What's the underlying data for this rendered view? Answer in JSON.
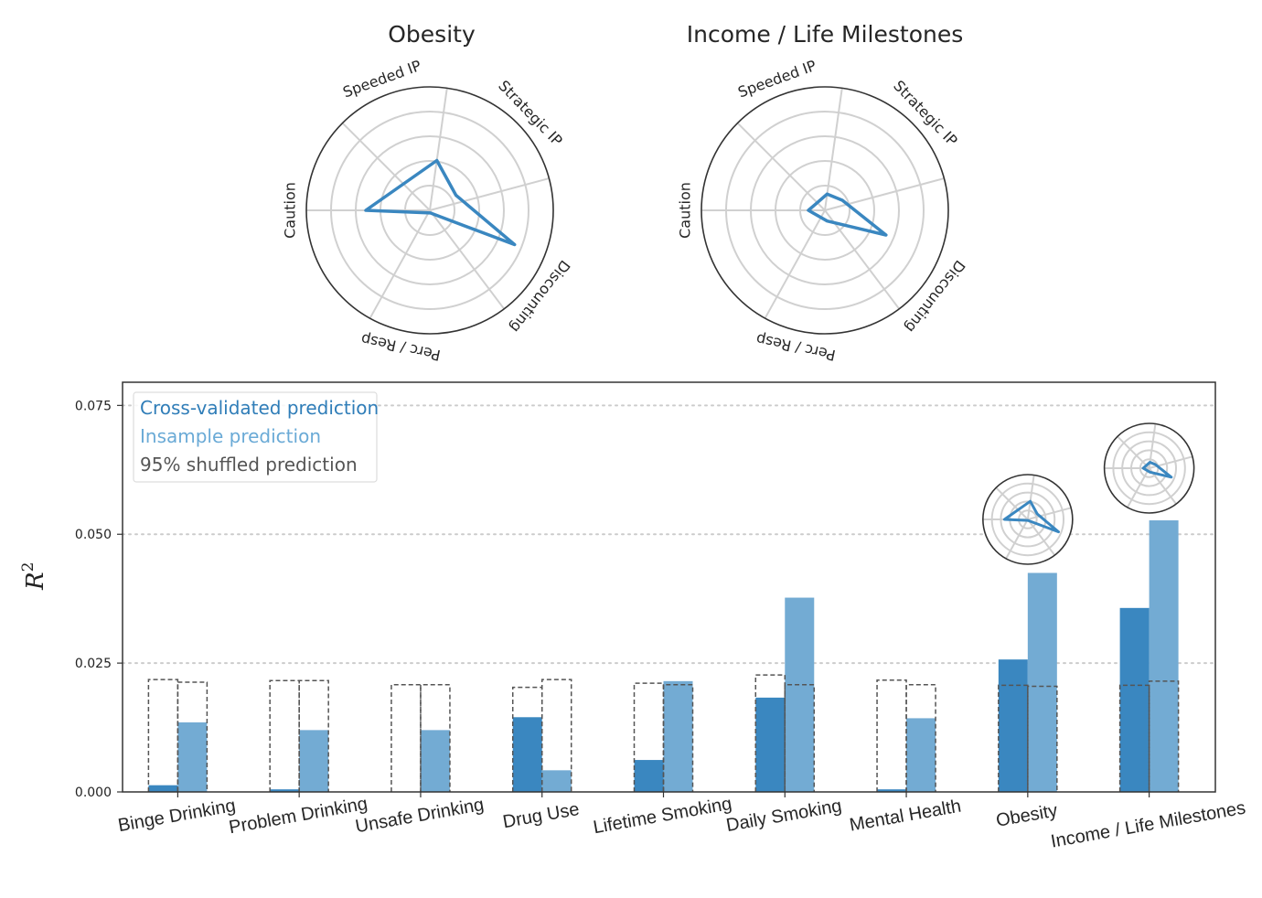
{
  "colors": {
    "cv": "#3a87c0",
    "insample": "#73abd3",
    "shuffled": "#555555",
    "grid": "#d0d0d0",
    "legend_cv_text": "#2f7db8",
    "legend_in_text": "#6aaad6",
    "legend_sh_text": "#555555"
  },
  "chart_data": [
    {
      "type": "radar",
      "title": "Obesity",
      "axes": [
        "Speeded  IP",
        "Strategic  IP",
        "Discounting",
        "Perc  /  Resp",
        "Caution"
      ],
      "values": [
        0.55,
        0.33,
        1.0,
        0.03,
        0.7
      ],
      "rmax": 1.35
    },
    {
      "type": "radar",
      "title": "Income / Life Milestones",
      "axes": [
        "Speeded  IP",
        "Strategic  IP",
        "Discounting",
        "Perc  /  Resp",
        "Caution"
      ],
      "values": [
        0.18,
        0.22,
        0.72,
        0.12,
        0.18
      ],
      "rmax": 1.35
    },
    {
      "type": "bar",
      "title": "",
      "xlabel": "",
      "ylabel": "R",
      "ylabel_sup": "2",
      "ylim": [
        0,
        0.0795
      ],
      "yticks": [
        "0.000",
        "0.025",
        "0.050",
        "0.075"
      ],
      "ytick_values": [
        0,
        0.025,
        0.05,
        0.075
      ],
      "grid": "horizontal dotted",
      "legend_placement": "top-left",
      "legend": [
        "Cross-validated prediction",
        "Insample prediction",
        "95% shuffled prediction"
      ],
      "categories": [
        "Binge Drinking",
        "Problem Drinking",
        "Unsafe Drinking",
        "Drug Use",
        "Lifetime Smoking",
        "Daily Smoking",
        "Mental Health",
        "Obesity",
        "Income / Life Milestones"
      ],
      "series": [
        {
          "name": "Cross-validated prediction",
          "values": [
            0.0013,
            0.0005,
            0.0,
            0.0145,
            0.0062,
            0.0183,
            0.0005,
            0.0257,
            0.0357
          ]
        },
        {
          "name": "Insample prediction",
          "values": [
            0.0135,
            0.012,
            0.012,
            0.0042,
            0.0215,
            0.0377,
            0.0143,
            0.0425,
            0.0527
          ]
        },
        {
          "name": "95% shuffled prediction",
          "cv_values": [
            0.0218,
            0.0216,
            0.0208,
            0.0203,
            0.0211,
            0.0227,
            0.0217,
            0.0207,
            0.0207
          ],
          "insample_values": [
            0.0213,
            0.0216,
            0.0208,
            0.0218,
            0.0208,
            0.0208,
            0.0208,
            0.0205,
            0.0215
          ]
        }
      ],
      "inset_radars": [
        {
          "category": "Obesity",
          "values": [
            0.55,
            0.33,
            1.0,
            0.03,
            0.7
          ]
        },
        {
          "category": "Income / Life Milestones",
          "values": [
            0.18,
            0.22,
            0.72,
            0.12,
            0.18
          ]
        }
      ]
    }
  ]
}
